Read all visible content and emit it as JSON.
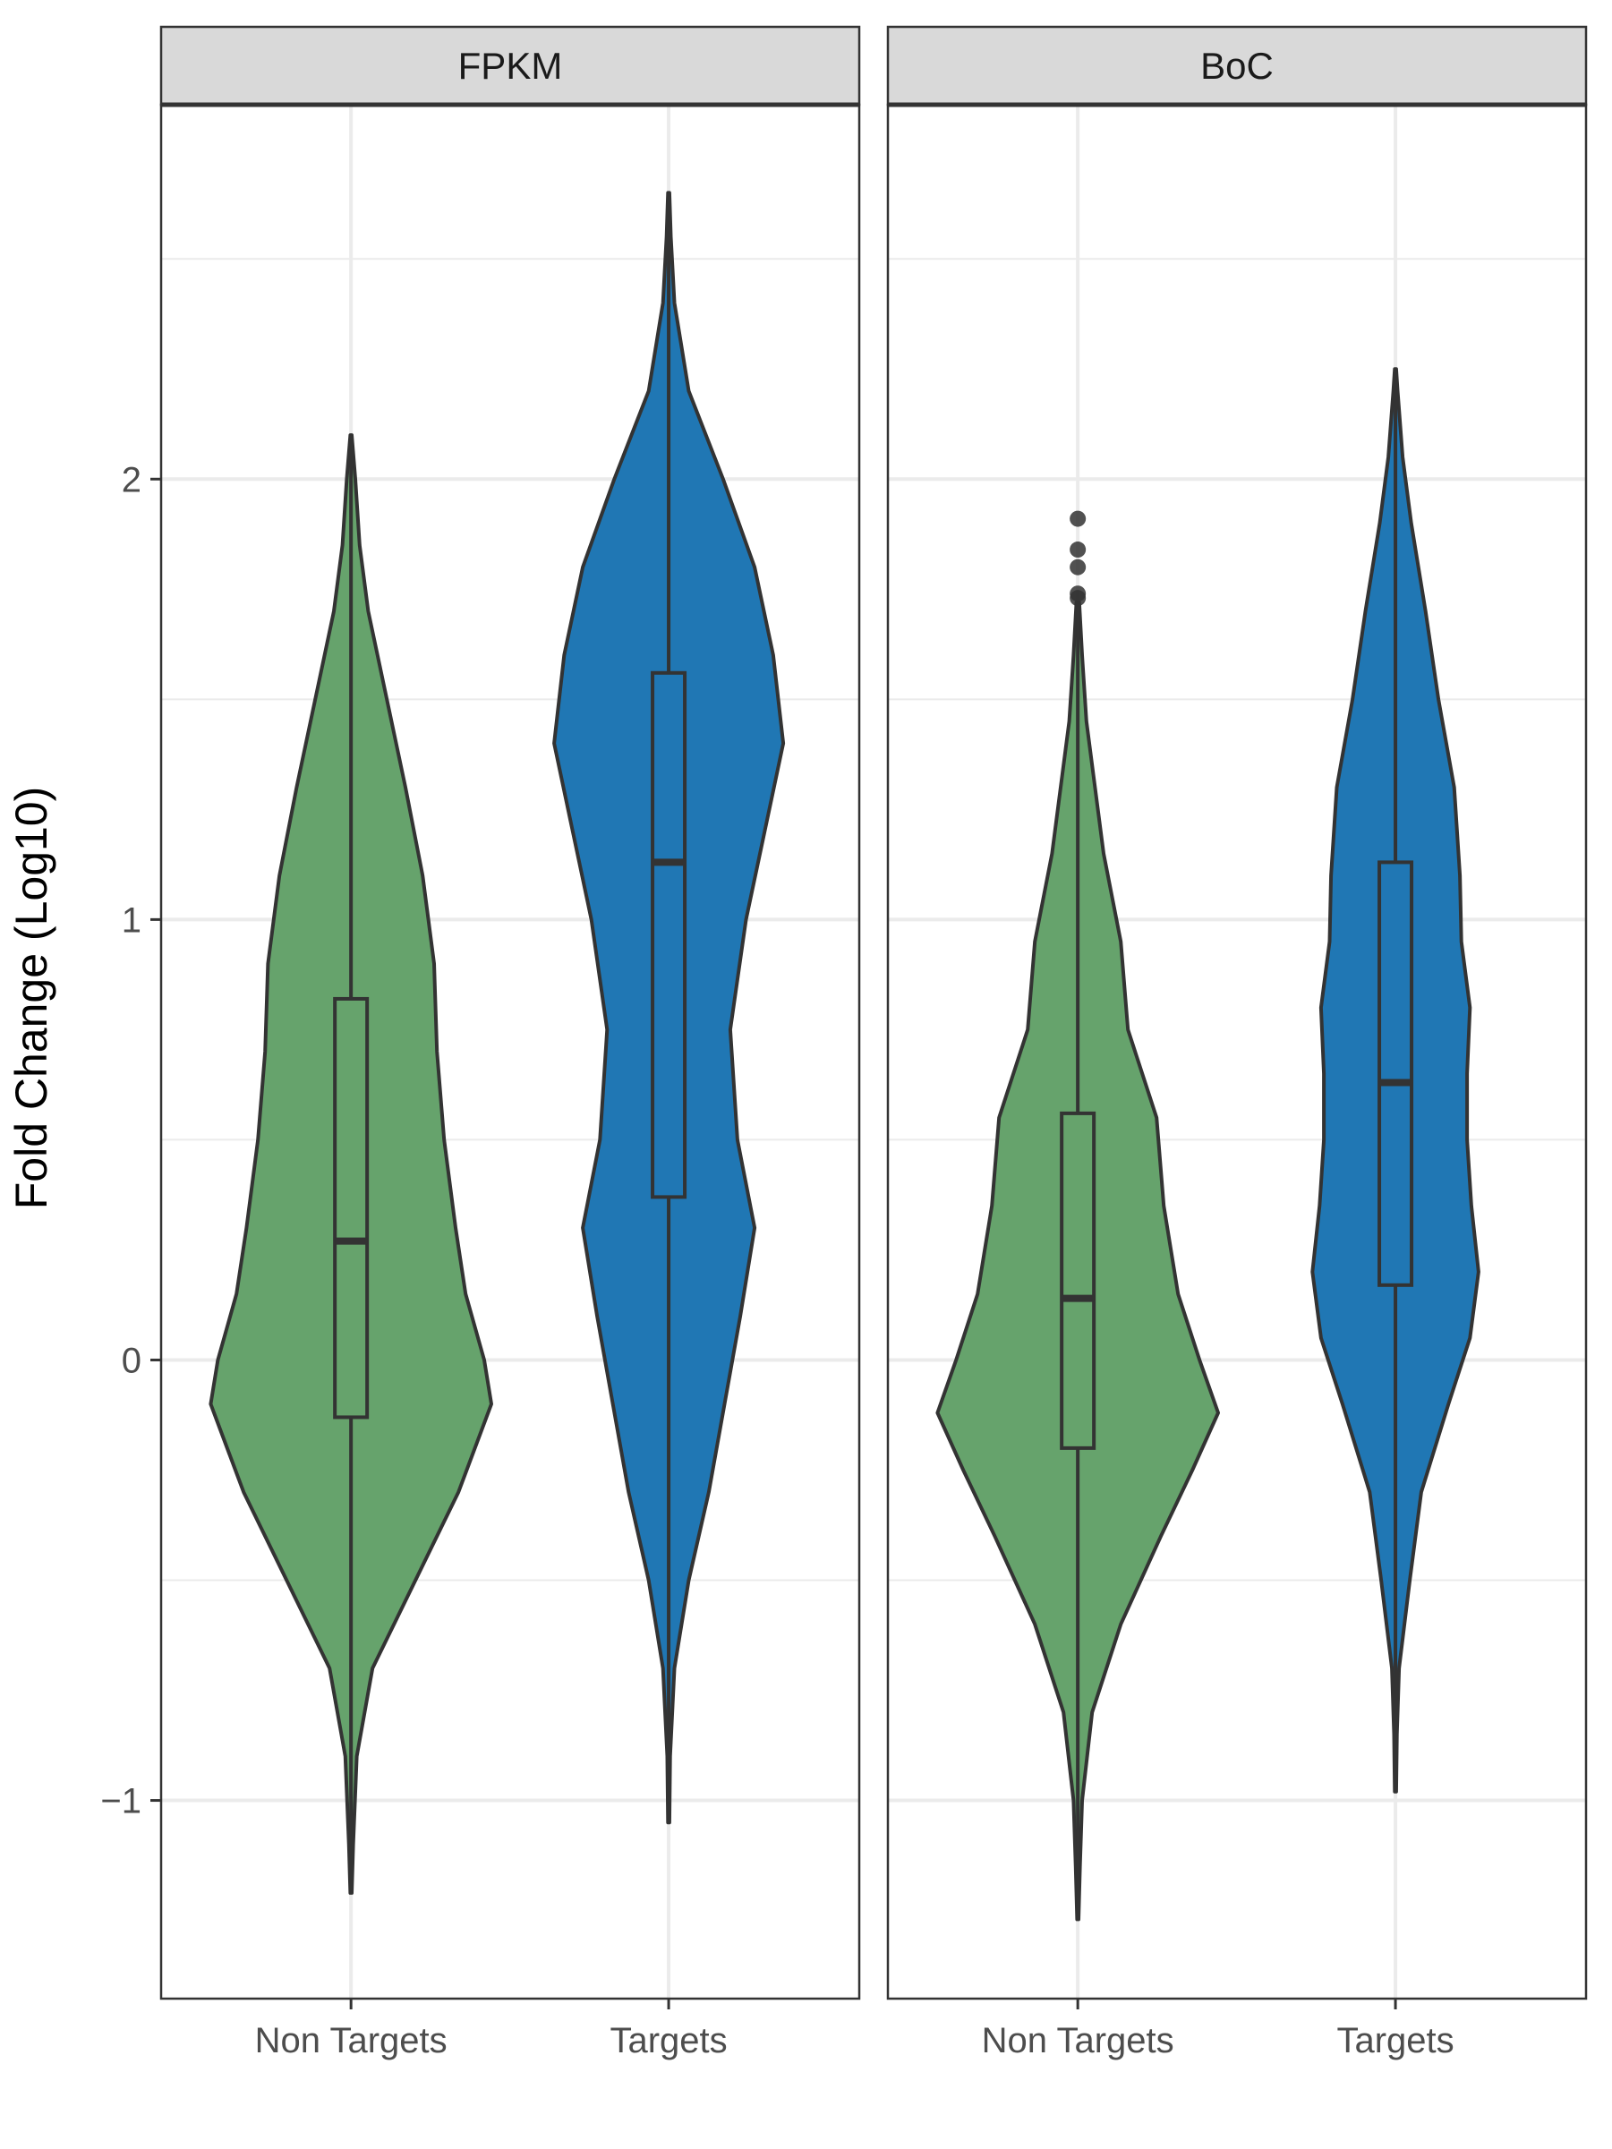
{
  "chart_data": {
    "type": "violin",
    "ylabel": "Fold Change (Log10)",
    "xlabel": "",
    "ylim": [
      -1.45,
      2.85
    ],
    "yticks": [
      -1,
      0,
      1,
      2
    ],
    "ytick_labels": [
      "−1",
      "0",
      "1",
      "2"
    ],
    "grid": true,
    "categories": [
      "Non Targets",
      "Targets"
    ],
    "colors": {
      "Non Targets": "#66a36c",
      "Targets": "#2077b4",
      "outline": "#333333",
      "gridline": "#ebebeb",
      "strip": "#d9d9d9"
    },
    "panels": [
      {
        "name": "FPKM",
        "groups": [
          {
            "category": "Non Targets",
            "box": {
              "q1": -0.13,
              "median": 0.27,
              "q3": 0.82,
              "lower_whisker": -1.2,
              "upper_whisker": 2.1
            },
            "outliers": [],
            "density": [
              [
                -1.21,
                0.005
              ],
              [
                -1.1,
                0.015
              ],
              [
                -0.9,
                0.04
              ],
              [
                -0.7,
                0.15
              ],
              [
                -0.5,
                0.45
              ],
              [
                -0.3,
                0.75
              ],
              [
                -0.1,
                0.98
              ],
              [
                0.0,
                0.93
              ],
              [
                0.15,
                0.8
              ],
              [
                0.3,
                0.73
              ],
              [
                0.5,
                0.65
              ],
              [
                0.7,
                0.6
              ],
              [
                0.9,
                0.58
              ],
              [
                1.1,
                0.5
              ],
              [
                1.3,
                0.38
              ],
              [
                1.5,
                0.25
              ],
              [
                1.7,
                0.12
              ],
              [
                1.85,
                0.06
              ],
              [
                2.0,
                0.03
              ],
              [
                2.1,
                0.005
              ]
            ]
          },
          {
            "category": "Targets",
            "box": {
              "q1": 0.37,
              "median": 1.13,
              "q3": 1.56,
              "lower_whisker": -1.05,
              "upper_whisker": 2.65
            },
            "outliers": [],
            "density": [
              [
                -1.05,
                0.005
              ],
              [
                -0.9,
                0.01
              ],
              [
                -0.7,
                0.04
              ],
              [
                -0.5,
                0.14
              ],
              [
                -0.3,
                0.28
              ],
              [
                -0.1,
                0.39
              ],
              [
                0.1,
                0.5
              ],
              [
                0.3,
                0.6
              ],
              [
                0.5,
                0.48
              ],
              [
                0.75,
                0.43
              ],
              [
                1.0,
                0.54
              ],
              [
                1.2,
                0.67
              ],
              [
                1.4,
                0.8
              ],
              [
                1.6,
                0.73
              ],
              [
                1.8,
                0.6
              ],
              [
                2.0,
                0.38
              ],
              [
                2.2,
                0.14
              ],
              [
                2.4,
                0.04
              ],
              [
                2.55,
                0.015
              ],
              [
                2.65,
                0.005
              ]
            ]
          }
        ]
      },
      {
        "name": "BoC",
        "groups": [
          {
            "category": "Non Targets",
            "box": {
              "q1": -0.2,
              "median": 0.14,
              "q3": 0.56,
              "lower_whisker": -1.27,
              "upper_whisker": 1.72
            },
            "outliers": [
              1.73,
              1.74,
              1.8,
              1.84,
              1.91
            ],
            "density": [
              [
                -1.27,
                0.005
              ],
              [
                -1.15,
                0.015
              ],
              [
                -1.0,
                0.03
              ],
              [
                -0.8,
                0.1
              ],
              [
                -0.6,
                0.3
              ],
              [
                -0.4,
                0.58
              ],
              [
                -0.25,
                0.8
              ],
              [
                -0.12,
                0.98
              ],
              [
                0.0,
                0.85
              ],
              [
                0.15,
                0.7
              ],
              [
                0.35,
                0.6
              ],
              [
                0.55,
                0.55
              ],
              [
                0.75,
                0.35
              ],
              [
                0.95,
                0.3
              ],
              [
                1.15,
                0.18
              ],
              [
                1.3,
                0.12
              ],
              [
                1.45,
                0.06
              ],
              [
                1.6,
                0.03
              ],
              [
                1.72,
                0.01
              ]
            ]
          },
          {
            "category": "Targets",
            "box": {
              "q1": 0.17,
              "median": 0.63,
              "q3": 1.13,
              "lower_whisker": -0.98,
              "upper_whisker": 2.25
            },
            "outliers": [],
            "density": [
              [
                -0.98,
                0.005
              ],
              [
                -0.85,
                0.01
              ],
              [
                -0.7,
                0.025
              ],
              [
                -0.5,
                0.1
              ],
              [
                -0.3,
                0.18
              ],
              [
                -0.1,
                0.37
              ],
              [
                0.05,
                0.52
              ],
              [
                0.2,
                0.58
              ],
              [
                0.35,
                0.53
              ],
              [
                0.5,
                0.5
              ],
              [
                0.65,
                0.5
              ],
              [
                0.8,
                0.52
              ],
              [
                0.95,
                0.46
              ],
              [
                1.1,
                0.45
              ],
              [
                1.3,
                0.41
              ],
              [
                1.5,
                0.3
              ],
              [
                1.7,
                0.21
              ],
              [
                1.9,
                0.11
              ],
              [
                2.05,
                0.05
              ],
              [
                2.2,
                0.015
              ],
              [
                2.25,
                0.005
              ]
            ]
          }
        ]
      }
    ]
  }
}
